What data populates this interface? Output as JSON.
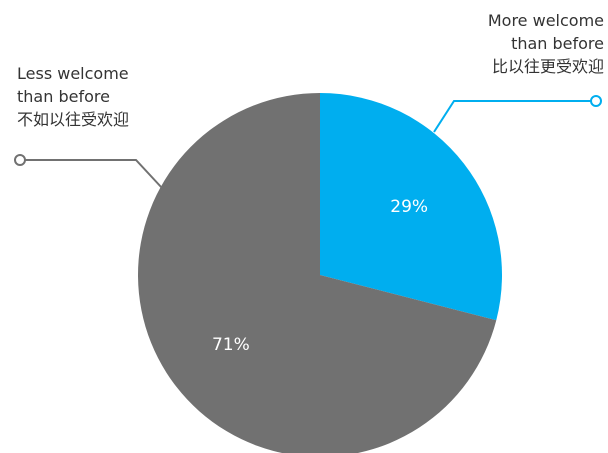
{
  "chart_data": {
    "type": "pie",
    "slices": [
      {
        "label_lines": [
          "More welcome",
          "than before",
          "比以往更受欢迎"
        ],
        "value": 29,
        "value_label": "29%",
        "color": "#00aeef"
      },
      {
        "label_lines": [
          "Less welcome",
          "than before",
          "不如以往受欢迎"
        ],
        "value": 71,
        "value_label": "71%",
        "color": "#717171"
      }
    ],
    "legend_placement": "callouts"
  }
}
